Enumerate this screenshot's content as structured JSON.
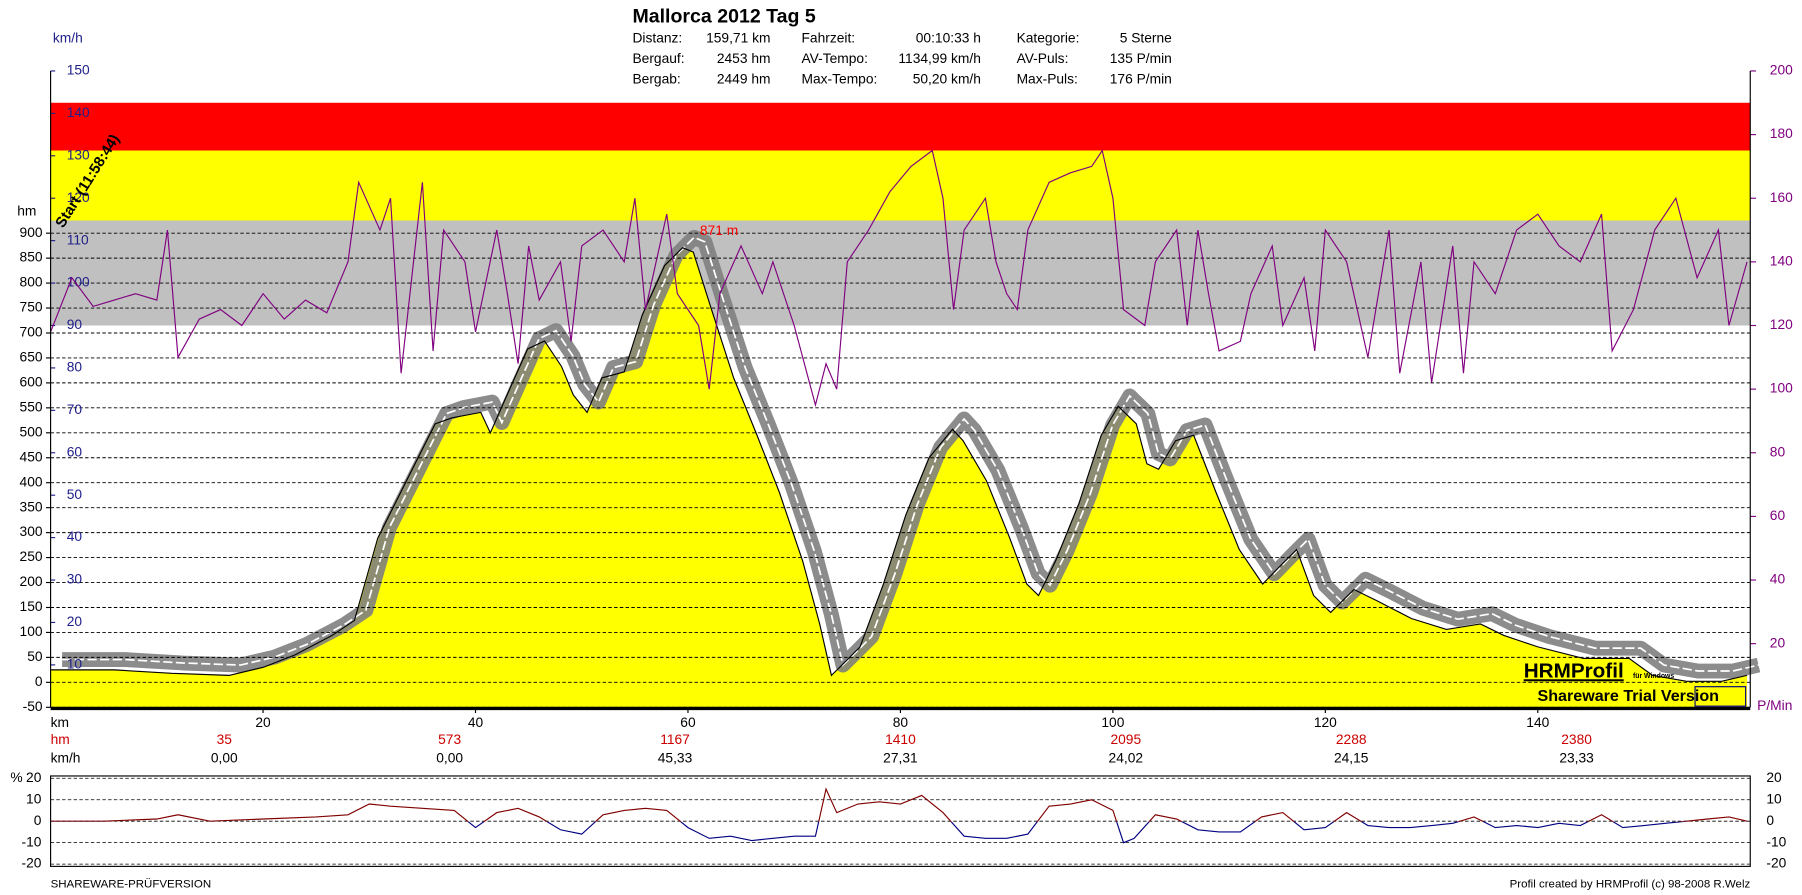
{
  "header": {
    "title": "Mallorca 2012 Tag 5",
    "stats": [
      [
        "Distanz:",
        "159,71 km",
        "Fahrzeit:",
        "00:10:33 h",
        "Kategorie:",
        "5 Sterne"
      ],
      [
        "Bergauf:",
        "2453 hm",
        "AV-Tempo:",
        "1134,99 km/h",
        "AV-Puls:",
        "135 P/min"
      ],
      [
        "Bergab:",
        "2449 hm",
        "Max-Tempo:",
        "50,20 km/h",
        "Max-Puls:",
        "176 P/min"
      ]
    ]
  },
  "chart_data": [
    {
      "type": "line",
      "xlabel": "km",
      "xlim": [
        0,
        160
      ],
      "xticks": [
        20,
        40,
        60,
        80,
        100,
        120,
        140
      ],
      "ylabel": "hm",
      "ylim": [
        -50,
        1225
      ],
      "yticks": [
        -50,
        0,
        50,
        100,
        150,
        200,
        250,
        300,
        350,
        400,
        450,
        500,
        550,
        600,
        650,
        700,
        750,
        800,
        850,
        900
      ],
      "y2label": "P/Min",
      "y2lim": [
        0,
        200
      ],
      "y2ticks": [
        20,
        40,
        60,
        80,
        100,
        120,
        140,
        160,
        180,
        200
      ],
      "speed_label": "km/h",
      "speed_lim": [
        0,
        150
      ],
      "speed_ticks": [
        10,
        20,
        30,
        40,
        50,
        60,
        70,
        80,
        90,
        100,
        110,
        120,
        130,
        140,
        150
      ],
      "grid": true,
      "zones": [
        {
          "from": 120,
          "to": 153,
          "color": "#c0c0c0"
        },
        {
          "from": 153,
          "to": 175,
          "color": "#ffff00"
        },
        {
          "from": 175,
          "to": 190,
          "color": "#ff0000"
        }
      ],
      "series": [
        {
          "color": "#000000",
          "fill": "#ffff00",
          "x": [
            0,
            6,
            11.4,
            16.8,
            20,
            23,
            26.5,
            28.6,
            30.8,
            33.5,
            36.2,
            37.8,
            40.5,
            41.4,
            43.2,
            44.9,
            46.5,
            48.1,
            49.2,
            50.5,
            51.9,
            54,
            55.7,
            57.8,
            59.5,
            60.5,
            62.2,
            64.3,
            66.5,
            68.6,
            70.8,
            72.4,
            73.5,
            74.6,
            76.2,
            78.4,
            80.5,
            82.7,
            84.9,
            85.9,
            88.1,
            90.3,
            91.9,
            93,
            94.6,
            96.8,
            98.9,
            100.5,
            102.2,
            103.2,
            104.3,
            105.9,
            107.6,
            109.7,
            111.9,
            114.1,
            115.7,
            117.3,
            118.9,
            120.5,
            122.7,
            124.9,
            128.1,
            131.4,
            134.6,
            136.8,
            140,
            144.3,
            148.6,
            150.8,
            154,
            157.3,
            159.7
          ],
          "values": [
            25,
            25,
            18,
            14,
            30,
            55,
            94,
            124,
            289,
            404,
            518,
            530,
            541,
            500,
            587,
            668,
            684,
            633,
            576,
            541,
            610,
            622,
            736,
            835,
            871,
            862,
            748,
            610,
            495,
            381,
            243,
            117,
            14,
            37,
            71,
            197,
            335,
            450,
            507,
            484,
            404,
            289,
            197,
            174,
            243,
            358,
            495,
            553,
            518,
            438,
            427,
            484,
            495,
            381,
            266,
            197,
            232,
            266,
            174,
            140,
            186,
            163,
            128,
            106,
            117,
            94,
            71,
            48,
            48,
            14,
            2,
            2,
            14
          ]
        },
        {
          "color": "#800080",
          "axis": "y2",
          "x": [
            0,
            2,
            4,
            6,
            8,
            10,
            11,
            12,
            14,
            16,
            18,
            20,
            22,
            24,
            26,
            28,
            29,
            31,
            32,
            33,
            35,
            36,
            37,
            39,
            40,
            42,
            43,
            44,
            45,
            46,
            48,
            49,
            50,
            52,
            54,
            55,
            56,
            58,
            59,
            61,
            62,
            63,
            65,
            67,
            68,
            70,
            72,
            73,
            74,
            75,
            77,
            79,
            81,
            83,
            84,
            85,
            86,
            88,
            89,
            90,
            91,
            92,
            94,
            96,
            98,
            99,
            100,
            101,
            103,
            104,
            106,
            107,
            108,
            109,
            110,
            112,
            113,
            115,
            116,
            118,
            119,
            120,
            122,
            124,
            126,
            127,
            129,
            130,
            132,
            133,
            134,
            136,
            138,
            140,
            142,
            144,
            146,
            147,
            149,
            151,
            153,
            155,
            157,
            158,
            159.7
          ],
          "values": [
            118,
            135,
            126,
            128,
            130,
            128,
            150,
            110,
            122,
            125,
            120,
            130,
            122,
            128,
            124,
            140,
            165,
            150,
            160,
            105,
            165,
            112,
            150,
            140,
            118,
            150,
            130,
            108,
            145,
            128,
            140,
            115,
            145,
            150,
            140,
            160,
            125,
            155,
            130,
            120,
            100,
            130,
            145,
            130,
            140,
            120,
            95,
            108,
            100,
            140,
            150,
            162,
            170,
            175,
            160,
            125,
            150,
            160,
            140,
            130,
            125,
            150,
            165,
            168,
            170,
            175,
            160,
            125,
            120,
            140,
            150,
            120,
            150,
            130,
            112,
            115,
            130,
            145,
            120,
            135,
            112,
            150,
            140,
            110,
            150,
            105,
            140,
            102,
            145,
            105,
            140,
            130,
            150,
            155,
            145,
            140,
            155,
            112,
            125,
            150,
            160,
            135,
            150,
            120,
            140
          ]
        }
      ],
      "annotations": [
        "871 m",
        "Start (11:58:44)"
      ],
      "summary": {
        "row_labels": [
          "hm",
          "km/h"
        ],
        "hm": [
          35,
          573,
          1167,
          1410,
          2095,
          2288,
          2380
        ],
        "kmh": [
          "0,00",
          "0,00",
          "45,33",
          "27,31",
          "24,02",
          "24,15",
          "23,33"
        ]
      },
      "watermark": [
        "HRMProfil",
        "für Windows",
        "Shareware Trial  Version"
      ]
    },
    {
      "type": "line",
      "ylabel": "%",
      "xlim": [
        0,
        160
      ],
      "ylim": [
        -20,
        20
      ],
      "yticks": [
        -20,
        -10,
        0,
        10,
        20
      ],
      "grid": true,
      "series": [
        {
          "color": "#800000",
          "negative_color": "#000080",
          "x": [
            0,
            5,
            10,
            12,
            15,
            20,
            25,
            28,
            30,
            32,
            35,
            38,
            40,
            42,
            44,
            46,
            48,
            50,
            52,
            54,
            56,
            58,
            60,
            62,
            64,
            66,
            68,
            70,
            72,
            73,
            74,
            76,
            78,
            80,
            82,
            84,
            86,
            88,
            90,
            92,
            94,
            96,
            98,
            100,
            101,
            102,
            104,
            106,
            108,
            110,
            112,
            114,
            116,
            118,
            120,
            122,
            124,
            126,
            128,
            130,
            132,
            134,
            136,
            138,
            140,
            142,
            144,
            146,
            148,
            150,
            152,
            154,
            156,
            158,
            159.7
          ],
          "values": [
            0,
            0,
            1,
            3,
            0,
            1,
            2,
            3,
            8,
            7,
            6,
            5,
            -3,
            4,
            6,
            2,
            -4,
            -6,
            3,
            5,
            6,
            5,
            -3,
            -8,
            -7,
            -9,
            -8,
            -7,
            -7,
            15,
            4,
            8,
            9,
            8,
            12,
            4,
            -7,
            -8,
            -8,
            -6,
            7,
            8,
            10,
            5,
            -10,
            -8,
            3,
            1,
            -4,
            -5,
            -5,
            2,
            4,
            -4,
            -3,
            4,
            -2,
            -3,
            -3,
            -2,
            -1,
            2,
            -3,
            -2,
            -3,
            -1,
            -2,
            3,
            -3,
            -2,
            -1,
            0,
            1,
            2,
            0
          ]
        }
      ]
    }
  ],
  "footer": {
    "left": "SHAREWARE-PRÜFVERSION",
    "right": "Profil created by HRMProfil (c) 98-2008 R.Welz"
  }
}
